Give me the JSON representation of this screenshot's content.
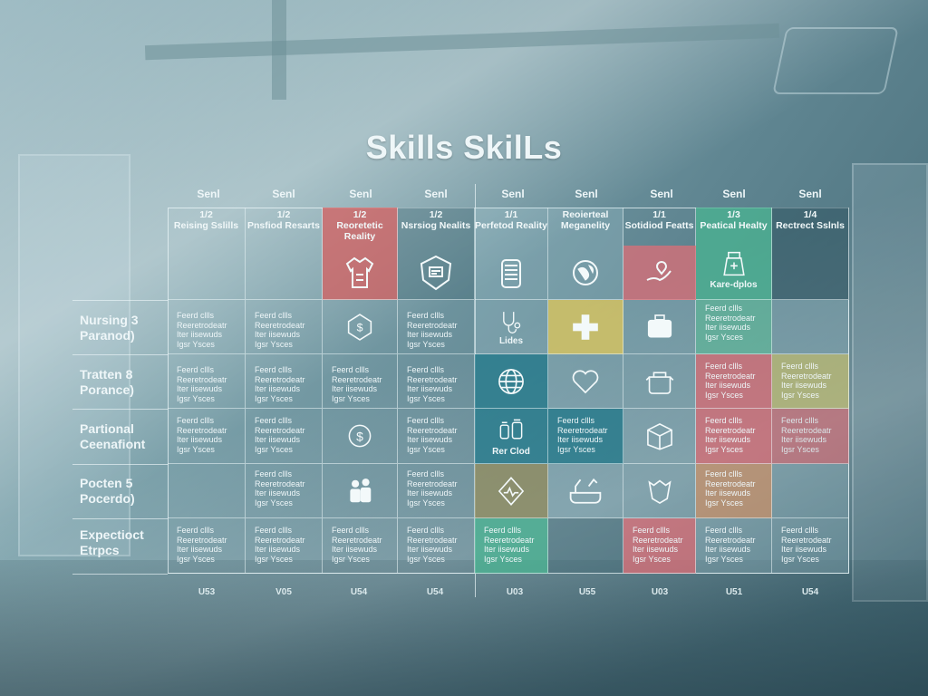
{
  "title": "Skills SkilLs",
  "column_top_labels": [
    "Senl",
    "Senl",
    "Senl",
    "Senl",
    "Senl",
    "Senl",
    "Senl",
    "Senl",
    "Senl"
  ],
  "column_bottom_labels": [
    "U53",
    "V05",
    "U54",
    "U54",
    "U03",
    "U55",
    "U03",
    "U51",
    "U54"
  ],
  "headers": [
    {
      "top": "1/2",
      "name": "Reising Sslills"
    },
    {
      "top": "1/2",
      "name": "Pnsfiod Resarts"
    },
    {
      "top": "1/2",
      "name": "Reoretetic Reality"
    },
    {
      "top": "1/2",
      "name": "Nsrsiog Nealits"
    },
    {
      "top": "1/1",
      "name": "Perfetod Reality"
    },
    {
      "top": "",
      "name": "Reoierteal Meganelity"
    },
    {
      "top": "1/1",
      "name": "Sotidiod Featts"
    },
    {
      "top": "1/3",
      "name": "Peatical Healty"
    },
    {
      "top": "1/4",
      "name": "Rectrect Sslnls"
    }
  ],
  "header_icon_caption": "Kare-dplos",
  "rows": [
    {
      "label": "Nursing 3\nParanod)"
    },
    {
      "label": "Tratten 8\nPorance)"
    },
    {
      "label": "Partional\nCeenafiont"
    },
    {
      "label": "Pocten 5\nPocerdo)"
    },
    {
      "label": "Expectioct\nEtrpcs"
    }
  ],
  "cell_text": "Feerd cllls\nReeretrodeatr\nIter iisewuds\nIgsr Ysces",
  "icon_captions": {
    "dro": "Lides",
    "barcod": "Rer Clod"
  },
  "colors": {
    "red": "#d66060",
    "yellow": "#dbc763",
    "green": "#4ab492",
    "teal": "#207a8c",
    "olive": "#968e5c",
    "pink": "#e26e76"
  }
}
